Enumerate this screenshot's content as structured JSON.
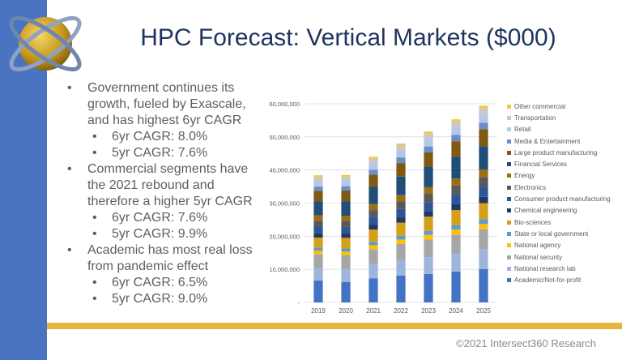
{
  "slide": {
    "title": "HPC Forecast: Vertical Markets ($000)",
    "copyright": "©2021 Intersect360 Research"
  },
  "bullets": [
    {
      "level": 1,
      "text": "Government continues its growth, fueled by Exascale, and has highest 6yr CAGR"
    },
    {
      "level": 2,
      "text": "6yr CAGR: 8.0%"
    },
    {
      "level": 2,
      "text": "5yr CAGR: 7.6%"
    },
    {
      "level": 1,
      "text": "Commercial segments have the 2021 rebound and therefore a higher 5yr CAGR"
    },
    {
      "level": 2,
      "text": "6yr CAGR: 7.6%"
    },
    {
      "level": 2,
      "text": "5yr CAGR: 9.9%"
    },
    {
      "level": 1,
      "text": "Academic has most real loss from pandemic effect"
    },
    {
      "level": 2,
      "text": "6yr CAGR: 6.5%"
    },
    {
      "level": 2,
      "text": "5yr CAGR: 9.0%"
    }
  ],
  "colors": {
    "brand_blue": "#4a73c2",
    "accent_gold": "#e6b43c",
    "title": "#1f3560"
  },
  "chart_data": {
    "type": "bar",
    "stacked": true,
    "categories": [
      "2019",
      "2020",
      "2021",
      "2022",
      "2023",
      "2024",
      "2025"
    ],
    "ylim": [
      0,
      60000000
    ],
    "yticks": [
      0,
      10000000,
      20000000,
      30000000,
      40000000,
      50000000,
      60000000
    ],
    "ytick_labels": [
      "-",
      "10,000,000",
      "20,000,000",
      "30,000,000",
      "40,000,000",
      "50,000,000",
      "60,000,000"
    ],
    "grid": true,
    "legend_position": "right",
    "series": [
      {
        "name": "Academic/Not-for-profit",
        "color": "#4472c4",
        "values": [
          6600000,
          6200000,
          7300000,
          8100000,
          8600000,
          9300000,
          10100000
        ]
      },
      {
        "name": "National research lab",
        "color": "#9db5dc",
        "values": [
          3800000,
          3900000,
          4300000,
          4700000,
          5100000,
          5500000,
          5900000
        ]
      },
      {
        "name": "National security",
        "color": "#a6a6a6",
        "values": [
          4100000,
          4200000,
          4500000,
          4900000,
          5300000,
          5700000,
          6100000
        ]
      },
      {
        "name": "National agency",
        "color": "#ffc000",
        "values": [
          1100000,
          1100000,
          1200000,
          1300000,
          1400000,
          1500000,
          1600000
        ]
      },
      {
        "name": "State or local government",
        "color": "#5b9bd5",
        "values": [
          900000,
          900000,
          1000000,
          1100000,
          1200000,
          1300000,
          1400000
        ]
      },
      {
        "name": "Bio-sciences",
        "color": "#d4a017",
        "values": [
          3100000,
          3200000,
          3700000,
          4000000,
          4300000,
          4600000,
          4900000
        ]
      },
      {
        "name": "Chemical engineering",
        "color": "#203864",
        "values": [
          1300000,
          1300000,
          1500000,
          1600000,
          1700000,
          1800000,
          1900000
        ]
      },
      {
        "name": "Consumer product manufacturing",
        "color": "#2e5597",
        "values": [
          2000000,
          2000000,
          2300000,
          2500000,
          2700000,
          2900000,
          3100000
        ]
      },
      {
        "name": "Electronics",
        "color": "#595959",
        "values": [
          1800000,
          1800000,
          2100000,
          2300000,
          2500000,
          2700000,
          2900000
        ]
      },
      {
        "name": "Energy",
        "color": "#9c6d12",
        "values": [
          1600000,
          1600000,
          1800000,
          1900000,
          2000000,
          2100000,
          2200000
        ]
      },
      {
        "name": "Financial Services",
        "color": "#1f4e79",
        "values": [
          4200000,
          4300000,
          5200000,
          5600000,
          6100000,
          6600000,
          7100000
        ]
      },
      {
        "name": "Large product manufacturing",
        "color": "#7f5a13",
        "values": [
          3200000,
          3300000,
          3700000,
          4100000,
          4400000,
          4700000,
          5100000
        ]
      },
      {
        "name": "Media & Entertainment",
        "color": "#6a8dc7",
        "values": [
          1300000,
          1300000,
          1500000,
          1700000,
          1800000,
          1900000,
          2000000
        ]
      },
      {
        "name": "Retail",
        "color": "#b4c7e7",
        "values": [
          1600000,
          1600000,
          1800000,
          2000000,
          2100000,
          2200000,
          2400000
        ]
      },
      {
        "name": "Transportation",
        "color": "#c9c9c9",
        "values": [
          1300000,
          1300000,
          1500000,
          1600000,
          1700000,
          1800000,
          1900000
        ]
      },
      {
        "name": "Other commercial",
        "color": "#f4c542",
        "values": [
          500000,
          500000,
          600000,
          600000,
          700000,
          700000,
          800000
        ]
      }
    ]
  }
}
